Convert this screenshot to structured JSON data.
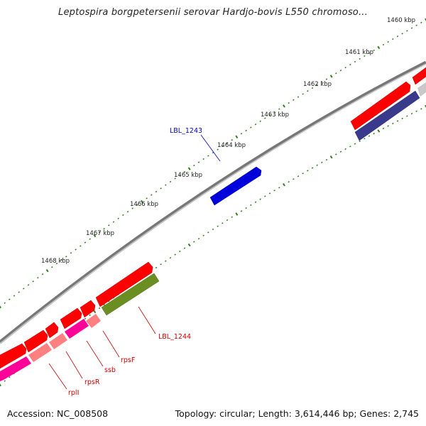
{
  "title": "Leptospira borgpetersenii serovar Hardjo-bovis L550 chromoso...",
  "footer": {
    "accession": "Accession: NC_008508",
    "summary": "Topology: circular; Length: 3,614,446 bp; Genes: 2,745"
  },
  "ticks": [
    "1460 kbp",
    "1461 kbp",
    "1462 kbp",
    "1463 kbp",
    "1464 kbp",
    "1465 kbp",
    "1466 kbp",
    "1467 kbp",
    "1468 kbp"
  ],
  "genes": {
    "LBL_1243": "LBL_1243",
    "LBL_1244": "LBL_1244",
    "rpsF": "rpsF",
    "ssb": "ssb",
    "rpsR": "rpsR",
    "rplI": "rplI"
  },
  "colors": {
    "backbone": "#888888",
    "tick": "#2e7d1e",
    "forward_red": "#ff0000",
    "blue": "#0000dd",
    "navy": "#3a3a8c",
    "olive": "#6b8e23",
    "magenta": "#ff0099",
    "pink": "#ff7f7f",
    "label_red": "#cc0000",
    "label_blue": "#0000cc"
  }
}
